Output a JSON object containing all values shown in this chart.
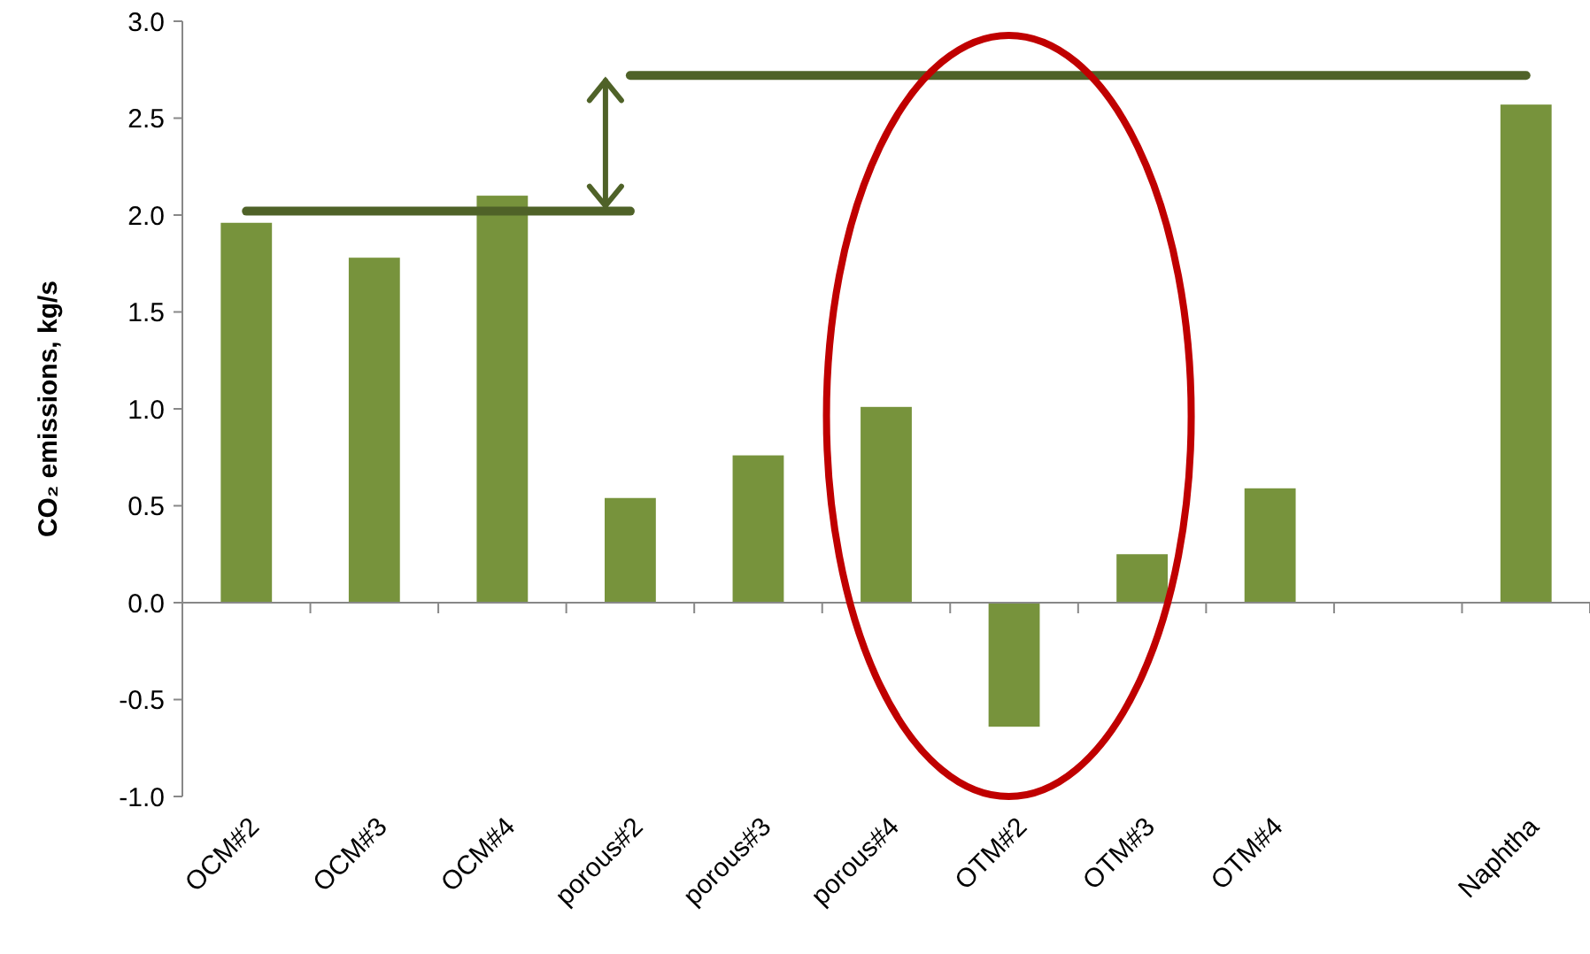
{
  "chart_data": {
    "type": "bar",
    "ylabel": "CO₂ emissions, kg/s",
    "categories": [
      "OCM#2",
      "OCM#3",
      "OCM#4",
      "porous#2",
      "porous#3",
      "porous#4",
      "OTM#2",
      "OTM#3",
      "OTM#4",
      null,
      "Naphtha"
    ],
    "series": [
      {
        "color": "#77933c",
        "values": [
          1.96,
          1.78,
          2.1,
          0.54,
          0.76,
          1.01,
          -0.64,
          0.25,
          0.59,
          null,
          2.57
        ]
      },
      {
        "type": "line",
        "color": "#4f6228",
        "values": [
          2.02,
          2.02,
          2.02,
          2.02,
          null,
          null,
          null,
          null,
          null,
          null,
          null
        ]
      },
      {
        "type": "line",
        "color": "#4f6228",
        "values": [
          null,
          null,
          null,
          2.72,
          2.72,
          2.72,
          2.72,
          2.72,
          2.72,
          2.72,
          2.72
        ]
      }
    ],
    "ylim": [
      -1,
      3
    ],
    "yticks": [
      {
        "value": -1,
        "label": "-1.0"
      },
      {
        "value": -0.5,
        "label": "-0.5"
      },
      {
        "value": 0,
        "label": "0.0"
      },
      {
        "value": 0.5,
        "label": "0.5"
      },
      {
        "value": 1,
        "label": "1.0"
      },
      {
        "value": 1.5,
        "label": "1.5"
      },
      {
        "value": 2,
        "label": "2.0"
      },
      {
        "value": 2.5,
        "label": "2.5"
      },
      {
        "value": 3,
        "label": "3.0"
      }
    ],
    "marker": "none",
    "line_style": "solid"
  }
}
